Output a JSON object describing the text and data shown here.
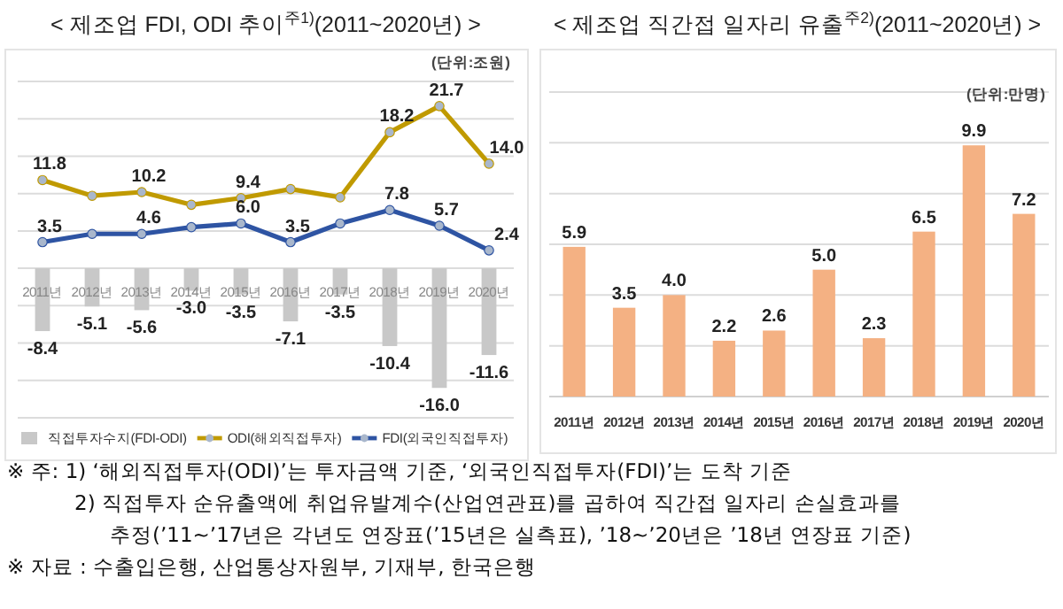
{
  "chart_data": [
    {
      "type": "bar",
      "title": "< 제조업 FDI, ODI 추이$^{주1)}$(2011~2020년) >",
      "categories": [
        "2011년",
        "2012년",
        "2013년",
        "2014년",
        "2015년",
        "2016년",
        "2017년",
        "2018년",
        "2019년",
        "2020년"
      ],
      "series": [
        {
          "name": "직접투자수지(FDI-ODI)",
          "type": "bar",
          "color": "#c8c8c8",
          "values": [
            -8.4,
            -5.1,
            -5.6,
            -3.0,
            -3.5,
            -7.1,
            -3.5,
            -10.4,
            -16.0,
            -11.6
          ],
          "value_labels": [
            "-8.4",
            "-5.1",
            "-5.6",
            "-3.0",
            "-3.5",
            "-7.1",
            "-3.5",
            "-10.4",
            "-16.0",
            "-11.6"
          ]
        },
        {
          "name": "ODI(해외직접투자)",
          "type": "line",
          "color": "#c09a00",
          "marker": "circle",
          "values": [
            11.8,
            9.7,
            10.2,
            8.5,
            9.4,
            10.6,
            9.5,
            18.2,
            21.7,
            14.0
          ],
          "value_labels": [
            "11.8",
            null,
            "10.2",
            null,
            "9.4",
            null,
            null,
            "18.2",
            "21.7",
            "14.0"
          ]
        },
        {
          "name": "FDI(외국인직접투자)",
          "type": "line",
          "color": "#2e54a3",
          "marker": "circle",
          "values": [
            3.5,
            4.6,
            4.6,
            5.5,
            6.0,
            3.5,
            6.0,
            7.8,
            5.7,
            2.4
          ],
          "value_labels": [
            "3.5",
            null,
            "4.6",
            null,
            "6.0",
            "3.5",
            null,
            "7.8",
            "5.7",
            "2.4"
          ]
        }
      ],
      "ylim": [
        -20,
        25
      ],
      "yticks": [
        {
          "value": -20,
          "label": null
        },
        {
          "value": -15,
          "label": null
        },
        {
          "value": -10,
          "label": null
        },
        {
          "value": -5,
          "label": null
        },
        {
          "value": 0,
          "label": null
        },
        {
          "value": 5,
          "label": null
        },
        {
          "value": 10,
          "label": null
        },
        {
          "value": 15,
          "label": null
        },
        {
          "value": 20,
          "label": null
        },
        {
          "value": 25,
          "label": null
        }
      ],
      "tick_labels": "x",
      "grid": "y",
      "legend": "bottom",
      "annotations": [
        "(단위:조원)"
      ]
    },
    {
      "type": "bar",
      "title": "< 제조업 직간접 일자리 유출$^{주2)}$(2011~2020년) >",
      "categories": [
        "2011년",
        "2012년",
        "2013년",
        "2014년",
        "2015년",
        "2016년",
        "2017년",
        "2018년",
        "2019년",
        "2020년"
      ],
      "values": [
        5.9,
        3.5,
        4.0,
        2.2,
        2.6,
        5.0,
        2.3,
        6.5,
        9.9,
        7.2
      ],
      "value_labels": [
        "5.9",
        "3.5",
        "4.0",
        "2.2",
        "2.6",
        "5.0",
        "2.3",
        "6.5",
        "9.9",
        "7.2"
      ],
      "color": "#f4b183",
      "ylim": [
        0,
        12
      ],
      "yticks": [
        {
          "value": 0,
          "label": null
        },
        {
          "value": 2,
          "label": null
        },
        {
          "value": 4,
          "label": null
        },
        {
          "value": 6,
          "label": null
        },
        {
          "value": 8,
          "label": null
        },
        {
          "value": 10,
          "label": null
        },
        {
          "value": 12,
          "label": null
        }
      ],
      "tick_labels": "x",
      "grid": "y",
      "annotations": [
        "(단위:만명)"
      ]
    },
    {
      "type": "other",
      "annotations": [
        "※ 주: 1) ‘해외직접투자(ODI)’는 투자금액 기준, ‘외국인직접투자(FDI)’는 도착 기준",
        "2) 직접투자 순유출액에 취업유발계수(산업연관표)를 곱하여 직간접 일자리 손실효과를",
        "추정(’11~’17년은 각년도 연장표(’15년은 실측표), ’18~’20년은 ’18년 연장표 기준)",
        "※ 자료 : 수출입은행, 산업통상자원부, 기재부, 한국은행"
      ]
    }
  ]
}
